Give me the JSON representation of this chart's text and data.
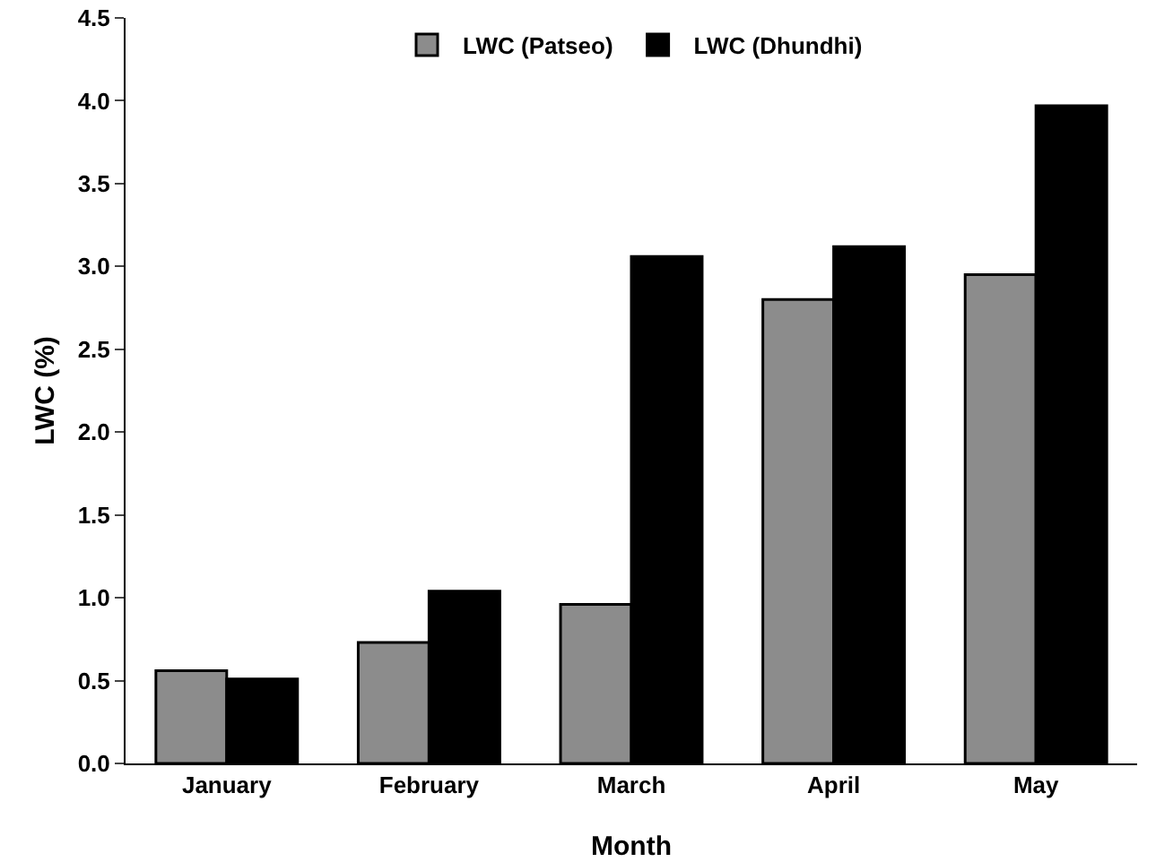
{
  "chart_data": {
    "type": "bar",
    "xlabel": "Month",
    "ylabel": "LWC (%)",
    "categories": [
      "January",
      "February",
      "March",
      "April",
      "May"
    ],
    "series": [
      {
        "name": "LWC (Patseo)",
        "color": "#8c8c8c",
        "values": [
          0.56,
          0.73,
          0.96,
          2.8,
          2.95
        ]
      },
      {
        "name": "LWC (Dhundhi)",
        "color": "#000000",
        "values": [
          0.51,
          1.04,
          3.06,
          3.12,
          3.97
        ]
      }
    ],
    "ylim": [
      0,
      4.5
    ],
    "yticks": [
      {
        "value": 0,
        "label": "0.0"
      },
      0.5,
      {
        "value": 1,
        "label": "1.0"
      },
      1.5,
      {
        "value": 2,
        "label": "2.0"
      },
      2.5,
      {
        "value": 3,
        "label": "3.0"
      },
      3.5,
      {
        "value": 4,
        "label": "4.0"
      },
      4.5
    ],
    "grid": false,
    "legend": "top"
  }
}
